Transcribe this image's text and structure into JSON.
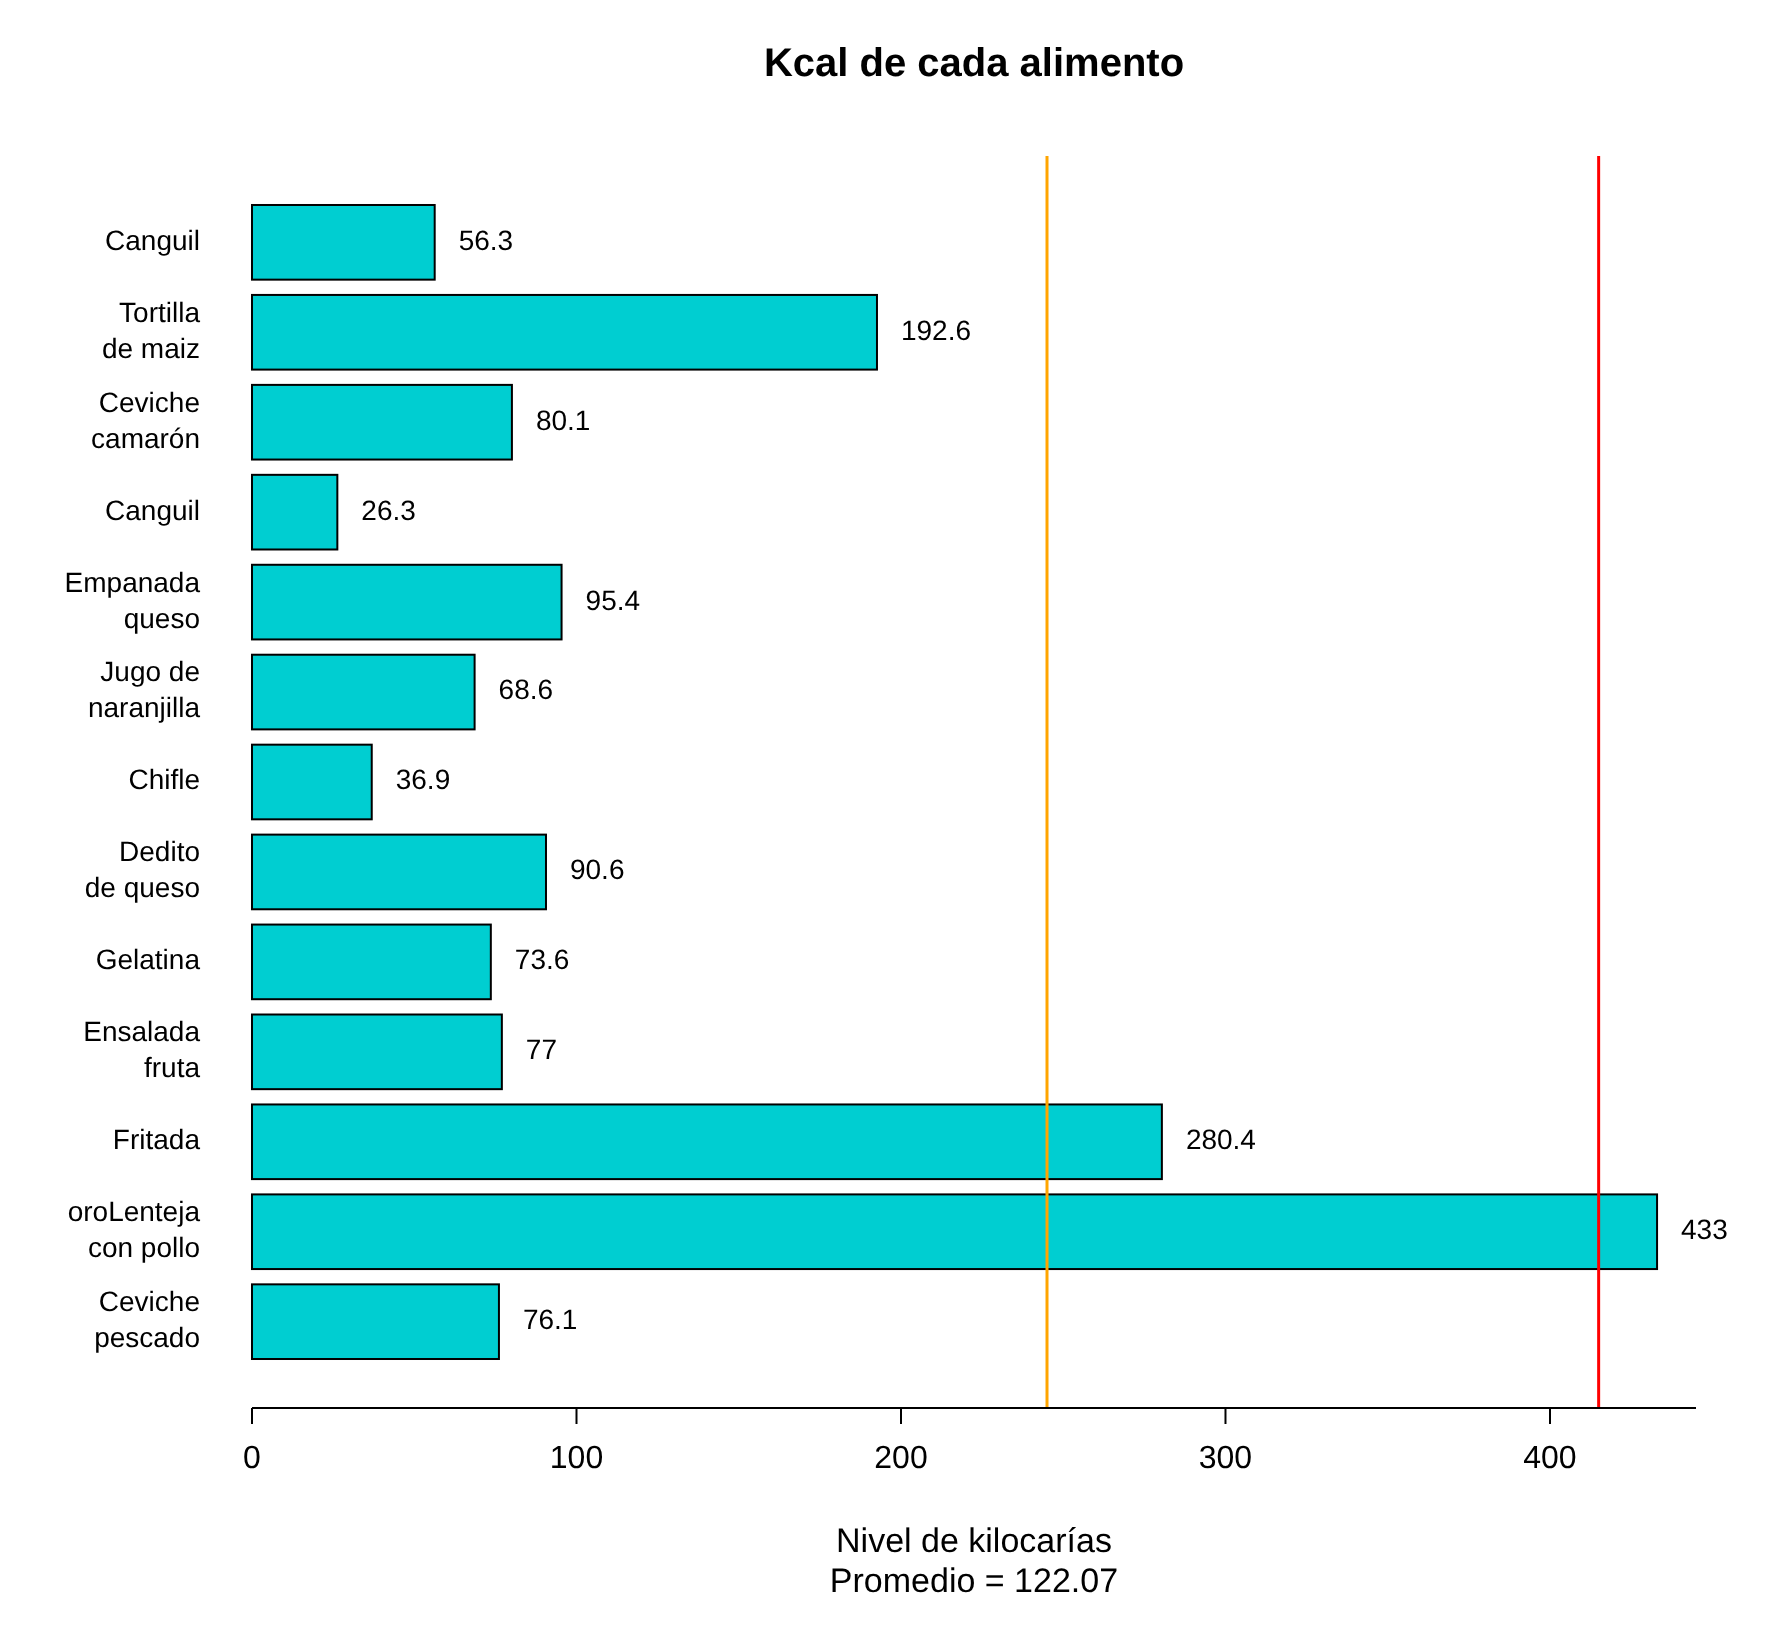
{
  "chart_data": {
    "type": "bar",
    "orientation": "horizontal",
    "title": "Kcal de cada alimento",
    "xlabel": "Nivel de kilocarías\nPromedio = 122.07",
    "categories": [
      "Canguil",
      "Tortilla\nde maiz",
      "Ceviche\ncamarón",
      "Canguil",
      "Empanada\nqueso",
      "Jugo de\nnaranjilla",
      "Chifle",
      "Dedito\nde queso",
      "Gelatina",
      "Ensalada\nfruta",
      "Fritada",
      "oroLenteja\ncon pollo",
      "Ceviche\npescado"
    ],
    "values": [
      56.3,
      192.6,
      80.1,
      26.3,
      95.4,
      68.6,
      36.9,
      90.6,
      73.6,
      77,
      280.4,
      433,
      76.1
    ],
    "color": "#00ced1",
    "data_labels": true,
    "xlim": [
      0,
      445
    ],
    "xticks": [
      0,
      100,
      200,
      300,
      400
    ],
    "grid": false,
    "ref_lines": [
      {
        "axis": "x",
        "value": 245,
        "color": "#ffa500"
      },
      {
        "axis": "x",
        "value": 415,
        "color": "#ff0000"
      }
    ]
  }
}
